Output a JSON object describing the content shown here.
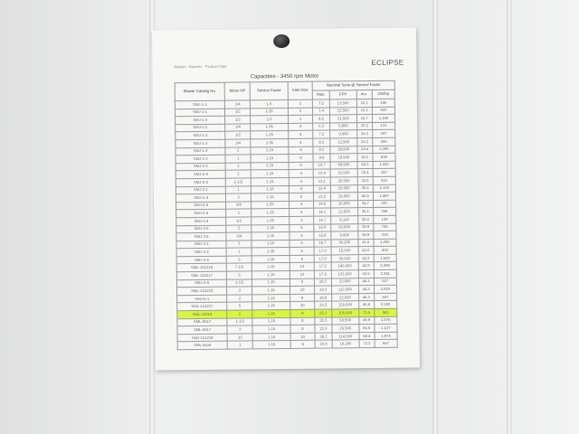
{
  "brand": "ECLIPSE",
  "note": "Bulletin · Blowers · Product Data",
  "table_title": "Capacities - 3450 rpm Motor",
  "headers": [
    "Blower Catalog No.",
    "Motor HP",
    "Service Factor",
    "Inlet Size",
    "Nominal Sone @ Service Factor"
  ],
  "subheaders": [
    "Max.",
    "CFH",
    "w.c.",
    "cfm/hp"
  ],
  "highlight_color": "#d9f53c",
  "highlight_row": 27,
  "rows": [
    [
      "SMJ-1-1",
      "1/4",
      "1.5",
      "2",
      "7.5",
      "13,500",
      "10.2",
      "196"
    ],
    [
      "SMJ-1-1",
      "1/2",
      "1.25",
      "2",
      "7.4",
      "12,500",
      "10.2",
      "420"
    ],
    [
      "SMJ-1-2",
      "1/2",
      "1.5",
      "2",
      "8.5",
      "21,500",
      "15.7",
      "1,150"
    ],
    [
      "SMJ-1-2",
      "1/4",
      "1.35",
      "4",
      "6.3",
      "5,800",
      "20.2",
      "131"
    ],
    [
      "SMJ-1-3",
      "1/2",
      "1.25",
      "4",
      "7.2",
      "9,500",
      "24.3",
      "247"
    ],
    [
      "SMJ-1-3",
      "3/4",
      "1.35",
      "4",
      "8.2",
      "12,500",
      "24.3",
      "266"
    ],
    [
      "SMJ-1-3",
      "2",
      "1.15",
      "5",
      "9.2",
      "29,500",
      "24.4",
      "1,290"
    ],
    [
      "SMJ-1-3",
      "1",
      "1.15",
      "5",
      "9.6",
      "18,500",
      "18.2",
      "634"
    ],
    [
      "SMJ-2-2",
      "1",
      "1.15",
      "5",
      "10.7",
      "58,500",
      "26.3",
      "1,043"
    ],
    [
      "SMJ-2-4",
      "2",
      "1.15",
      "4",
      "10.4",
      "31,500",
      "20.4",
      "187"
    ],
    [
      "SMJ-2-4",
      "1-1/2",
      "1.15",
      "4",
      "13.1",
      "20,500",
      "30.8",
      "421"
    ],
    [
      "SMJ-2-1",
      "1",
      "1.15",
      "4",
      "13.4",
      "25,500",
      "35.4",
      "2,104"
    ],
    [
      "SMJ-2-4",
      "2",
      "1.15",
      "5",
      "13.2",
      "18,500",
      "40.5",
      "1,487"
    ],
    [
      "SMJ-2-4",
      "3/4",
      "1.25",
      "4",
      "14.6",
      "10,500",
      "34.7",
      "357"
    ],
    [
      "SMJ-3-4",
      "1",
      "1.25",
      "4",
      "14.1",
      "12,500",
      "36.1",
      "358"
    ],
    [
      "SMJ-3-4",
      "1/2",
      "1.25",
      "3",
      "14.7",
      "8,100",
      "38.0",
      "138"
    ],
    [
      "SMJ-3-5",
      "2",
      "1.15",
      "5",
      "15.6",
      "20,500",
      "38.9",
      "746"
    ],
    [
      "SMJ-3-5",
      "3/4",
      "1.25",
      "5",
      "15.8",
      "9,900",
      "39.9",
      "319"
    ],
    [
      "SMJ-3-1",
      "3",
      "1.15",
      "5",
      "16.7",
      "36,200",
      "41.6",
      "1,290"
    ],
    [
      "SMJ-3-2",
      "1",
      "1.25",
      "5",
      "17.0",
      "15,500",
      "42.0",
      "430"
    ],
    [
      "SMJ-3-5",
      "5",
      "1.15",
      "6",
      "17.0",
      "30,500",
      "42.5",
      "1,530"
    ],
    [
      "SML-121219",
      "7-1/2",
      "1.15",
      "10",
      "17.3",
      "140,500",
      "42.9",
      "2,496"
    ],
    [
      "SML-121217",
      "5",
      "1.15",
      "10",
      "17.6",
      "132,500",
      "43.5",
      "2,341"
    ],
    [
      "SMJ-4-5",
      "1-1/2",
      "1.15",
      "5",
      "18.3",
      "23,500",
      "44.1",
      "527"
    ],
    [
      "SML-121219",
      "3",
      "1.15",
      "10",
      "19.3",
      "112,500",
      "44.3",
      "2,820"
    ],
    [
      "SMJ-5-1",
      "2",
      "1.15",
      "8",
      "19.8",
      "22,500",
      "46.3",
      "547"
    ],
    [
      "SML-121217",
      "5",
      "1.15",
      "10",
      "20.3",
      "128,500",
      "45.9",
      "3,240"
    ],
    [
      "SML-13019",
      "2",
      "1.15",
      "8",
      "25.2",
      "105,500",
      "73.5",
      "941"
    ],
    [
      "SML-8517",
      "1-1/2",
      "1.15",
      "8",
      "21.5",
      "16,500",
      "49.9",
      "1,575"
    ],
    [
      "SML-6517",
      "3",
      "1.15",
      "8",
      "21.9",
      "26,500",
      "56.6",
      "1,127"
    ],
    [
      "SMJ-121219",
      "10",
      "1.15",
      "10",
      "28.2",
      "114,500",
      "68.4",
      "1,974"
    ],
    [
      "SML-8414",
      "1",
      "1.15",
      "6",
      "23.8",
      "16,250",
      "72.2",
      "947"
    ]
  ]
}
